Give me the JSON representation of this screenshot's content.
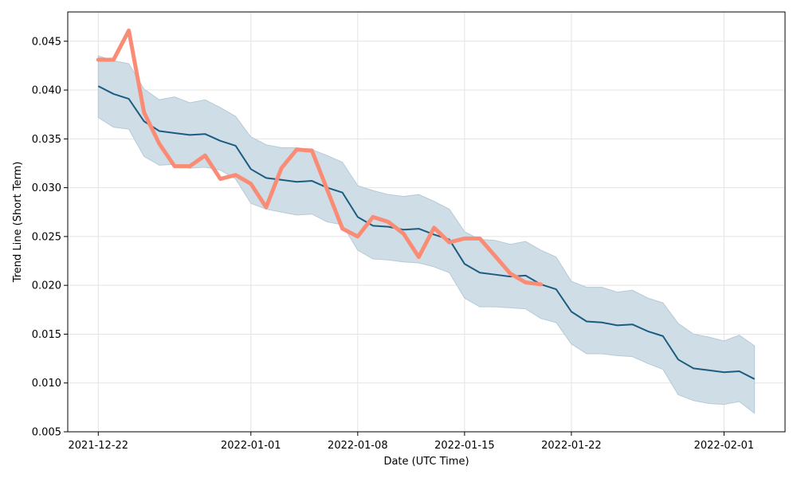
{
  "chart_data": {
    "type": "line",
    "xlabel": "Date (UTC Time)",
    "ylabel": "Trend Line (Short Term)",
    "xlim": [
      "2021-12-20",
      "2022-02-05"
    ],
    "ylim": [
      0.005,
      0.048
    ],
    "grid": true,
    "x_ticks": [
      {
        "date": "2021-12-22",
        "label": "2021-12-22"
      },
      {
        "date": "2022-01-01",
        "label": "2022-01-01"
      },
      {
        "date": "2022-01-08",
        "label": "2022-01-08"
      },
      {
        "date": "2022-01-15",
        "label": "2022-01-15"
      },
      {
        "date": "2022-01-22",
        "label": "2022-01-22"
      },
      {
        "date": "2022-02-01",
        "label": "2022-02-01"
      }
    ],
    "y_ticks": [
      {
        "value": 0.005,
        "label": "0.005"
      },
      {
        "value": 0.01,
        "label": "0.010"
      },
      {
        "value": 0.015,
        "label": "0.015"
      },
      {
        "value": 0.02,
        "label": "0.020"
      },
      {
        "value": 0.025,
        "label": "0.025"
      },
      {
        "value": 0.03,
        "label": "0.030"
      },
      {
        "value": 0.035,
        "label": "0.035"
      },
      {
        "value": 0.04,
        "label": "0.040"
      },
      {
        "value": 0.045,
        "label": "0.045"
      }
    ],
    "colors": {
      "band": "#cfdde6",
      "band_edge": "#b5cad7",
      "trend": "#1c5c80",
      "actual": "#fa8c76",
      "grid": "#e3e3e3"
    },
    "series": [
      {
        "role": "band",
        "x": [
          "2021-12-22",
          "2021-12-23",
          "2021-12-24",
          "2021-12-25",
          "2021-12-26",
          "2021-12-27",
          "2021-12-28",
          "2021-12-29",
          "2021-12-30",
          "2021-12-31",
          "2022-01-01",
          "2022-01-02",
          "2022-01-03",
          "2022-01-04",
          "2022-01-05",
          "2022-01-06",
          "2022-01-07",
          "2022-01-08",
          "2022-01-09",
          "2022-01-10",
          "2022-01-11",
          "2022-01-12",
          "2022-01-13",
          "2022-01-14",
          "2022-01-15",
          "2022-01-16",
          "2022-01-17",
          "2022-01-18",
          "2022-01-19",
          "2022-01-20",
          "2022-01-21",
          "2022-01-22",
          "2022-01-23",
          "2022-01-24",
          "2022-01-25",
          "2022-01-26",
          "2022-01-27",
          "2022-01-28",
          "2022-01-29",
          "2022-01-30",
          "2022-01-31",
          "2022-02-01",
          "2022-02-02",
          "2022-02-03"
        ],
        "upper": [
          0.0435,
          0.043,
          0.0427,
          0.0401,
          0.039,
          0.0393,
          0.0387,
          0.039,
          0.0382,
          0.0373,
          0.0352,
          0.0344,
          0.0341,
          0.0341,
          0.0339,
          0.0333,
          0.0326,
          0.0302,
          0.0297,
          0.0293,
          0.0291,
          0.0293,
          0.0286,
          0.0278,
          0.0255,
          0.0247,
          0.0246,
          0.0242,
          0.0245,
          0.0236,
          0.0229,
          0.0204,
          0.0198,
          0.0198,
          0.0193,
          0.0195,
          0.0187,
          0.0182,
          0.0161,
          0.015,
          0.0147,
          0.0143,
          0.0149,
          0.0138
        ],
        "lower": [
          0.0372,
          0.0362,
          0.036,
          0.0332,
          0.0323,
          0.0324,
          0.032,
          0.0321,
          0.0318,
          0.0309,
          0.0284,
          0.0278,
          0.0275,
          0.0272,
          0.0273,
          0.0265,
          0.0262,
          0.0236,
          0.0227,
          0.0226,
          0.0224,
          0.0223,
          0.0219,
          0.0213,
          0.0187,
          0.0178,
          0.0178,
          0.0177,
          0.0176,
          0.0166,
          0.0162,
          0.014,
          0.013,
          0.013,
          0.0128,
          0.0127,
          0.012,
          0.0114,
          0.0088,
          0.0082,
          0.0079,
          0.0078,
          0.0081,
          0.0069
        ]
      },
      {
        "role": "trend",
        "x": [
          "2021-12-22",
          "2021-12-23",
          "2021-12-24",
          "2021-12-25",
          "2021-12-26",
          "2021-12-27",
          "2021-12-28",
          "2021-12-29",
          "2021-12-30",
          "2021-12-31",
          "2022-01-01",
          "2022-01-02",
          "2022-01-03",
          "2022-01-04",
          "2022-01-05",
          "2022-01-06",
          "2022-01-07",
          "2022-01-08",
          "2022-01-09",
          "2022-01-10",
          "2022-01-11",
          "2022-01-12",
          "2022-01-13",
          "2022-01-14",
          "2022-01-15",
          "2022-01-16",
          "2022-01-17",
          "2022-01-18",
          "2022-01-19",
          "2022-01-20",
          "2022-01-21",
          "2022-01-22",
          "2022-01-23",
          "2022-01-24",
          "2022-01-25",
          "2022-01-26",
          "2022-01-27",
          "2022-01-28",
          "2022-01-29",
          "2022-01-30",
          "2022-01-31",
          "2022-02-01",
          "2022-02-02",
          "2022-02-03"
        ],
        "values": [
          0.0404,
          0.0396,
          0.0391,
          0.0368,
          0.0358,
          0.0356,
          0.0354,
          0.0355,
          0.0348,
          0.0343,
          0.0319,
          0.031,
          0.0308,
          0.0306,
          0.0307,
          0.03,
          0.0295,
          0.027,
          0.0261,
          0.026,
          0.0257,
          0.0258,
          0.0252,
          0.0247,
          0.0222,
          0.0213,
          0.0211,
          0.0209,
          0.021,
          0.0201,
          0.0196,
          0.0173,
          0.0163,
          0.0162,
          0.0159,
          0.016,
          0.0153,
          0.0148,
          0.0124,
          0.0115,
          0.0113,
          0.0111,
          0.0112,
          0.0104
        ]
      },
      {
        "role": "actual",
        "x": [
          "2021-12-22",
          "2021-12-23",
          "2021-12-24",
          "2021-12-25",
          "2021-12-26",
          "2021-12-27",
          "2021-12-28",
          "2021-12-29",
          "2021-12-30",
          "2021-12-31",
          "2022-01-01",
          "2022-01-02",
          "2022-01-03",
          "2022-01-04",
          "2022-01-05",
          "2022-01-06",
          "2022-01-07",
          "2022-01-08",
          "2022-01-09",
          "2022-01-10",
          "2022-01-11",
          "2022-01-12",
          "2022-01-13",
          "2022-01-14",
          "2022-01-15",
          "2022-01-16",
          "2022-01-17",
          "2022-01-18",
          "2022-01-19",
          "2022-01-20"
        ],
        "values": [
          0.0431,
          0.0431,
          0.0461,
          0.0377,
          0.0345,
          0.0322,
          0.0322,
          0.0333,
          0.0309,
          0.0313,
          0.0304,
          0.028,
          0.032,
          0.0339,
          0.0338,
          0.0298,
          0.0258,
          0.025,
          0.027,
          0.0265,
          0.0253,
          0.0229,
          0.0259,
          0.0244,
          0.0248,
          0.0248,
          0.023,
          0.0212,
          0.0203,
          0.0201
        ]
      }
    ]
  }
}
